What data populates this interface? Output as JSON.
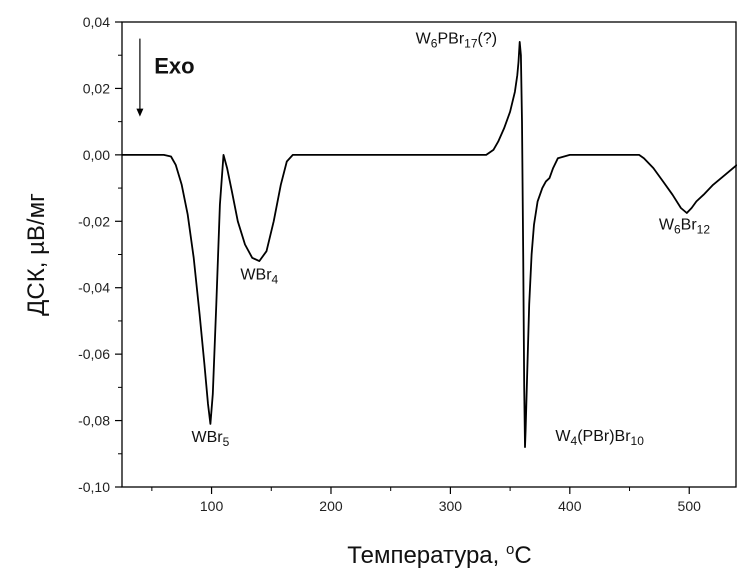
{
  "chart_data": {
    "type": "line",
    "title": "",
    "xlabel": "Температура, ",
    "xlabel_sup": "o",
    "xlabel_unit": "C",
    "ylabel": "ДСК, µВ/мг",
    "xlim": [
      25,
      540
    ],
    "ylim": [
      -0.1,
      0.04
    ],
    "xticks": [
      100,
      200,
      300,
      400,
      500
    ],
    "xtick_labels": [
      "100",
      "200",
      "300",
      "400",
      "500"
    ],
    "yticks": [
      0.04,
      0.02,
      0.0,
      -0.02,
      -0.04,
      -0.06,
      -0.08,
      -0.1
    ],
    "ytick_labels": [
      "0,04",
      "0,02",
      "0,00",
      "-0,02",
      "-0,04",
      "-0,06",
      "-0,08",
      "-0,10"
    ],
    "grid": false,
    "exo_label": "Exo",
    "series": [
      {
        "color": "#000000",
        "x": [
          25,
          60,
          66,
          70,
          75,
          80,
          85,
          90,
          94,
          97,
          99,
          101,
          104,
          107,
          110,
          113,
          117,
          122,
          128,
          134,
          140,
          146,
          152,
          158,
          163,
          168,
          200,
          250,
          300,
          320,
          330,
          336,
          340,
          345,
          350,
          354,
          356,
          357,
          358,
          359,
          360,
          361,
          361.8,
          362.5,
          363,
          364,
          366,
          368,
          370,
          373,
          377,
          380,
          383,
          386,
          390,
          400,
          420,
          450,
          458,
          462,
          470,
          478,
          486,
          493,
          498,
          502,
          506,
          512,
          520,
          530,
          540
        ],
        "y": [
          0.0,
          0.0,
          -0.0005,
          -0.003,
          -0.009,
          -0.018,
          -0.031,
          -0.048,
          -0.063,
          -0.075,
          -0.081,
          -0.072,
          -0.045,
          -0.015,
          0.0,
          -0.004,
          -0.011,
          -0.02,
          -0.027,
          -0.031,
          -0.032,
          -0.029,
          -0.02,
          -0.009,
          -0.002,
          0.0,
          0.0,
          0.0,
          0.0,
          0.0,
          0.0,
          0.0015,
          0.004,
          0.008,
          0.013,
          0.019,
          0.024,
          0.028,
          0.034,
          0.03,
          0.01,
          -0.03,
          -0.07,
          -0.088,
          -0.083,
          -0.07,
          -0.045,
          -0.03,
          -0.021,
          -0.014,
          -0.01,
          -0.008,
          -0.007,
          -0.004,
          -0.001,
          0.0,
          0.0,
          0.0,
          0.0,
          -0.001,
          -0.004,
          -0.008,
          -0.012,
          -0.016,
          -0.0175,
          -0.016,
          -0.014,
          -0.012,
          -0.009,
          -0.006,
          -0.003
        ]
      }
    ],
    "annotations": [
      {
        "parts": [
          [
            "WBr",
            "n"
          ],
          [
            "5",
            "sub"
          ]
        ],
        "x": 99,
        "y": -0.0865
      },
      {
        "parts": [
          [
            "WBr",
            "n"
          ],
          [
            "4",
            "sub"
          ]
        ],
        "x": 140,
        "y": -0.0375
      },
      {
        "parts": [
          [
            "W",
            "n"
          ],
          [
            "6",
            "sub"
          ],
          [
            "PBr",
            "n"
          ],
          [
            "17",
            "sub"
          ],
          [
            "(?)",
            "n"
          ]
        ],
        "x": 305,
        "y": 0.0335
      },
      {
        "parts": [
          [
            "W",
            "n"
          ],
          [
            "4",
            "sub"
          ],
          [
            "(PBr)Br",
            "n"
          ],
          [
            "10",
            "sub"
          ]
        ],
        "x": 425,
        "y": -0.0862
      },
      {
        "parts": [
          [
            "W",
            "n"
          ],
          [
            "6",
            "sub"
          ],
          [
            "Br",
            "n"
          ],
          [
            "12",
            "sub"
          ]
        ],
        "x": 496,
        "y": -0.0225
      }
    ]
  }
}
